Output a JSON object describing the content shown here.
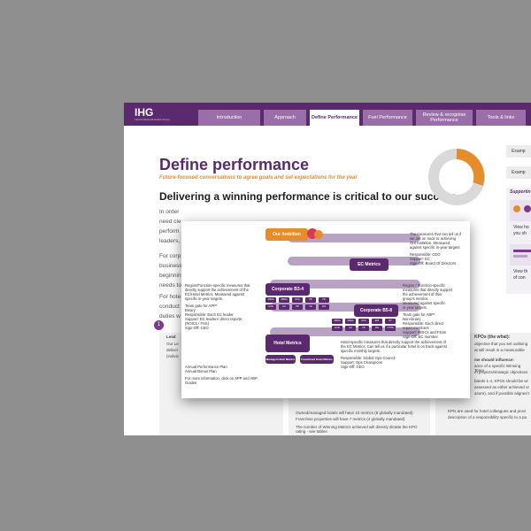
{
  "brand": {
    "logo": "IHG",
    "logo_sub": "InterContinental Hotels Group"
  },
  "nav": {
    "tabs": [
      {
        "label": "Introduction"
      },
      {
        "label": "Approach"
      },
      {
        "label": "Define Performance"
      },
      {
        "label": "Fuel Performance"
      },
      {
        "label": "Review & recognise Performance"
      },
      {
        "label": "Tools & links"
      }
    ]
  },
  "page": {
    "title": "Define performance",
    "subtitle": "Future-focused conversations to agree goals and set expectations for the year",
    "headline": "Delivering a winning performance is critical to our success.",
    "body_lines": [
      "In order",
      "need cle",
      "perform",
      "leaders,",
      "For corp",
      "business",
      "beginnin",
      "needs to",
      "For hote",
      "conduct",
      "duties w"
    ],
    "step_number": "1"
  },
  "sidebar": {
    "cards": [
      "Examp",
      "Examp"
    ],
    "support_heading": "Supportin",
    "support_lines": [
      "View ho",
      "you sh",
      "View th",
      "of con"
    ]
  },
  "columns": {
    "left": [
      "Lead",
      "Our Le",
      "deliver",
      "(indivic"
    ],
    "middle_bullets": [
      "Owned/managed hotels will have 10 metrics (8 globally mandated)",
      "Franchise properties will have 7 metrics (4 globally mandated)",
      "The number of Winning Metrics achieved will directly dictate the KPO rating - see tables"
    ],
    "right": [
      "KPOs (the what):",
      "objective that you set outlining",
      "at will result in a measurable",
      "me should influence:",
      "ance of a specific Winning Team",
      "m projects/strategic objectives",
      "bands 1-4, KPOs should be wr",
      "assessed as either achieved or",
      "asure), and if possible aligned t",
      "",
      "KPIs are used for hotel colleagues and provi",
      "description of a responsibility specific to a pa"
    ]
  },
  "diagram": {
    "ambition": "Our Ambition",
    "ec_metrics": "EC Metrics",
    "corp_b34": "Corporate B3-4",
    "corp_b58": "Corporate B5-8",
    "hotel_metrics": "Hotel Metrics",
    "managed_hotel": "Managed Hotel Metrics",
    "franchised_hotel": "Franchised Hotel Metrics",
    "mini_labels": [
      "AMEA",
      "AMEA",
      "GCA",
      "HR",
      "FR",
      "EUR",
      "GC",
      "HR",
      "FR",
      "FIN",
      "AMEA",
      "AMEA",
      "GCA",
      "EMI",
      "OT",
      "EUR",
      "GC",
      "FR",
      "FIN",
      "OTHR"
    ],
    "ambition_note": [
      "The measures that can tell us if",
      "we are on track to achieving",
      "Our Ambition. Measured",
      "against specific in-year targets",
      "",
      "Responsible: CEO",
      "Support: EC",
      "Sign-Off: Board Of Directors"
    ],
    "region_note": [
      "Region/Function-specific measures that",
      "directly support the achievement of the",
      "EC/Hotel Metrics. Measured against",
      "specific in-year targets.",
      "",
      "Team gate for APP*",
      "Binary",
      "Responsible: Each EC leader",
      "Support: EC leaders' direct reports",
      "(ROICs / FSS)",
      "Sign-Off: CEO"
    ],
    "right_note": [
      "Region / Function-specific",
      "measures that directly support",
      "the achievement of their",
      "group's metrics.",
      "Measured against specific",
      "in-year targets.",
      "",
      "Team gate for ABP*",
      "Non-binary",
      "Responsible: Each direct",
      "report members",
      "Support: ROICs and FSSs",
      "Sign-Off: EC member"
    ],
    "plans": [
      "Annual Performance Plan",
      "Annual Bonus Plan"
    ],
    "more_info": "For more information, click on APP and ABP Guides",
    "hotel_note": [
      "Hotel-specific measures that directly support the achievement of",
      "the EC Metrics. Can tell us if a particular hotel is on track against",
      "specific monthly targets.",
      "",
      "Responsible: Global Ops Council",
      "Support: Ops Champions",
      "Sign-Off: CEO"
    ]
  },
  "colors": {
    "purple": "#5b2a6e",
    "tab": "#9a6fa9",
    "orange": "#e48d2a",
    "ring_grey": "#d9d9d9"
  }
}
